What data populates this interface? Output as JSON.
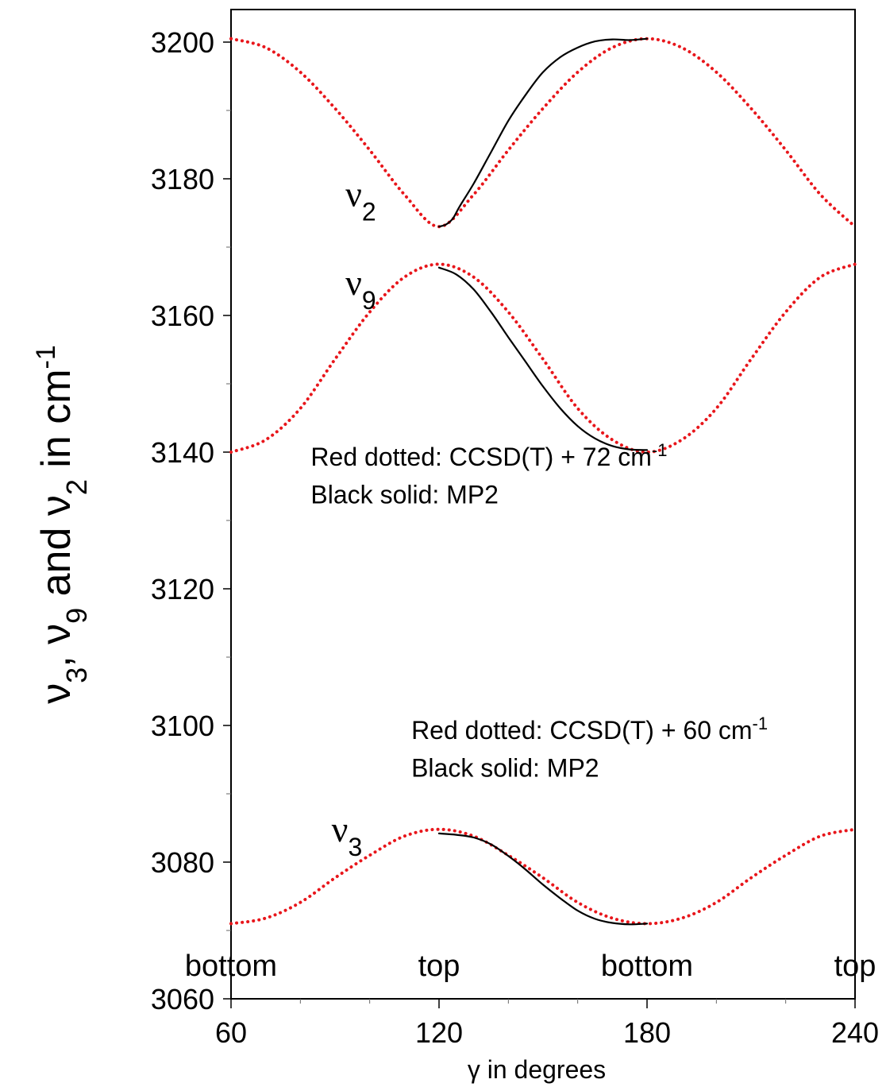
{
  "chart_data": {
    "type": "line",
    "xlabel": "γ in degrees",
    "ylabel": {
      "parts": [
        {
          "t": "ν",
          "sub": "3"
        },
        {
          "t": ",  "
        },
        {
          "t": "ν",
          "sub": "9"
        },
        {
          "t": " and "
        },
        {
          "t": "ν",
          "sub": "2"
        },
        {
          "t": " in cm",
          "sup": "-1"
        }
      ]
    },
    "xlim": [
      60,
      240
    ],
    "ylim": [
      3060,
      3205
    ],
    "x_ticks": [
      60,
      120,
      180,
      240
    ],
    "x_minor_step": 20,
    "y_ticks": [
      3060,
      3080,
      3100,
      3120,
      3140,
      3160,
      3180,
      3200
    ],
    "y_minor_step": 10,
    "position_labels": [
      {
        "x": 60,
        "text": "bottom"
      },
      {
        "x": 120,
        "text": "top"
      },
      {
        "x": 180,
        "text": "bottom"
      },
      {
        "x": 240,
        "text": "top"
      }
    ],
    "series": [
      {
        "curve_label": {
          "t": "ν",
          "sub": "2"
        },
        "label_at": [
          93,
          3176
        ],
        "dotted": {
          "color": "#e8161b",
          "x": [
            60,
            70,
            80,
            90,
            100,
            110,
            120,
            130,
            140,
            150,
            160,
            170,
            180,
            190,
            200,
            210,
            220,
            230,
            240
          ],
          "y": [
            3200.5,
            3199.2,
            3195.6,
            3190.3,
            3184.2,
            3177.7,
            3173.0,
            3177.7,
            3184.2,
            3190.3,
            3195.6,
            3199.2,
            3200.5,
            3199.2,
            3195.6,
            3190.3,
            3184.2,
            3177.7,
            3173.0
          ]
        },
        "solid": {
          "color": "#000000",
          "x": [
            120,
            122,
            124,
            126,
            130,
            135,
            140,
            145,
            150,
            155,
            160,
            165,
            170,
            175,
            180
          ],
          "y": [
            3173.0,
            3173.3,
            3174.2,
            3176.0,
            3179.3,
            3183.9,
            3188.5,
            3192.3,
            3195.6,
            3197.8,
            3199.2,
            3200.1,
            3200.4,
            3200.3,
            3200.5
          ]
        }
      },
      {
        "curve_label": {
          "t": "ν",
          "sub": "9"
        },
        "label_at": [
          93,
          3163
        ],
        "dotted": {
          "color": "#e8161b",
          "x": [
            60,
            70,
            80,
            90,
            100,
            110,
            120,
            130,
            140,
            150,
            160,
            170,
            180,
            190,
            200,
            210,
            220,
            230,
            240
          ],
          "y": [
            3140.0,
            3141.8,
            3146.4,
            3153.6,
            3160.5,
            3165.6,
            3167.5,
            3165.6,
            3160.5,
            3153.6,
            3146.4,
            3141.8,
            3140.0,
            3141.8,
            3146.4,
            3153.6,
            3160.5,
            3165.6,
            3167.5
          ]
        },
        "solid": {
          "color": "#000000",
          "x": [
            120,
            125,
            130,
            135,
            140,
            145,
            150,
            155,
            160,
            165,
            170,
            175,
            180
          ],
          "y": [
            3167.0,
            3166.0,
            3163.8,
            3160.5,
            3156.8,
            3153.2,
            3149.6,
            3146.4,
            3143.8,
            3142.0,
            3140.9,
            3140.4,
            3140.3
          ]
        }
      },
      {
        "curve_label": {
          "t": "ν",
          "sub": "3"
        },
        "label_at": [
          89,
          3083
        ],
        "dotted": {
          "color": "#e8161b",
          "x": [
            60,
            70,
            80,
            90,
            100,
            110,
            120,
            130,
            140,
            150,
            160,
            170,
            180,
            190,
            200,
            210,
            220,
            230,
            240
          ],
          "y": [
            3071.0,
            3071.8,
            3074.1,
            3077.7,
            3081.0,
            3083.8,
            3084.8,
            3083.8,
            3081.0,
            3077.7,
            3074.1,
            3071.8,
            3071.0,
            3071.8,
            3074.1,
            3077.7,
            3081.0,
            3083.8,
            3084.8
          ]
        },
        "solid": {
          "color": "#000000",
          "x": [
            120,
            125,
            130,
            135,
            140,
            145,
            150,
            155,
            160,
            165,
            170,
            175,
            180
          ],
          "y": [
            3084.2,
            3084.0,
            3083.6,
            3082.6,
            3080.9,
            3078.9,
            3076.7,
            3074.7,
            3072.9,
            3071.7,
            3071.1,
            3070.9,
            3071.0
          ]
        }
      }
    ],
    "annotations": [
      {
        "at": [
          83,
          3138
        ],
        "text": "Red dotted:  CCSD(T) + 72 cm",
        "sup": "-1"
      },
      {
        "at": [
          83,
          3132.5
        ],
        "text": "Black solid:  MP2"
      },
      {
        "at": [
          112,
          3098
        ],
        "text": "Red dotted:  CCSD(T) + 60 cm",
        "sup": "-1"
      },
      {
        "at": [
          112,
          3092.5
        ],
        "text": "Black solid:  MP2"
      }
    ]
  }
}
